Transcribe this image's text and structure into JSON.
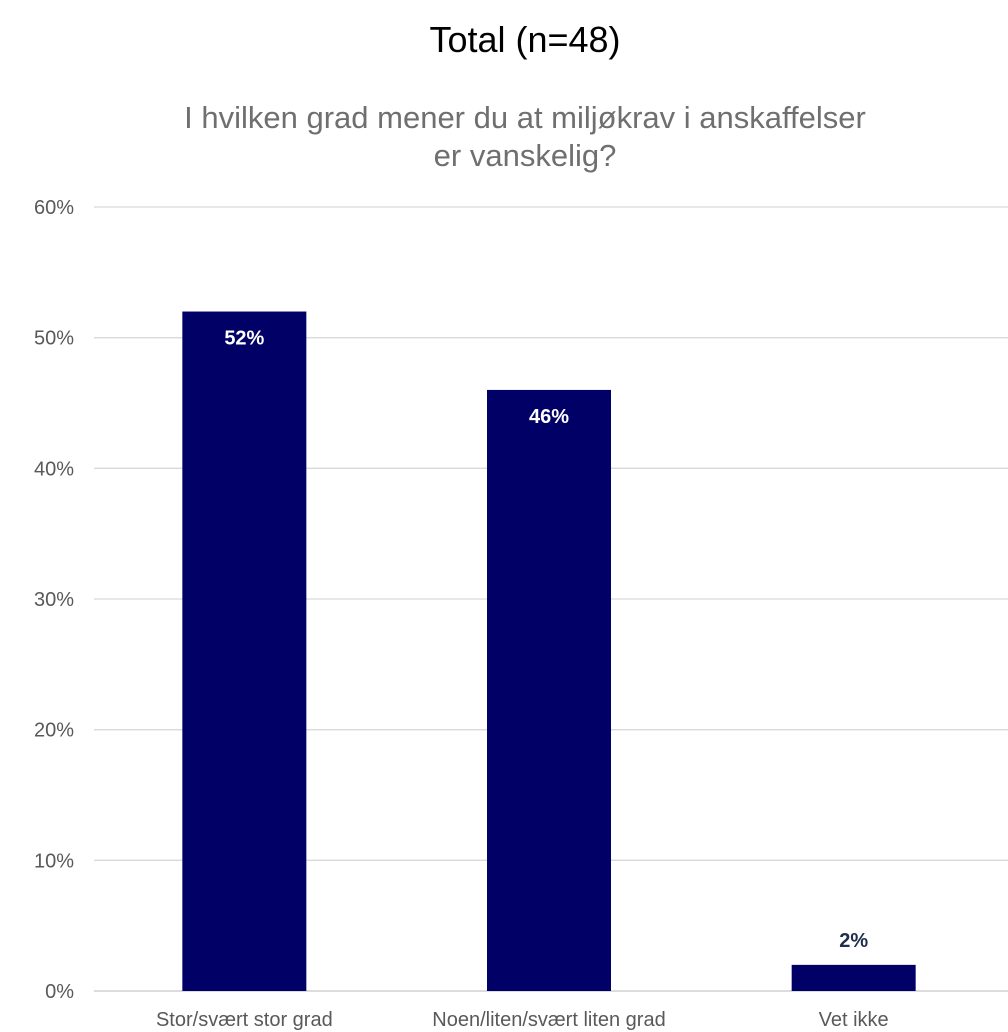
{
  "chart_data": {
    "type": "bar",
    "title": "Total (n=48)",
    "subtitle_lines": [
      "I hvilken grad mener du at miljøkrav i anskaffelser",
      "er vanskelig?"
    ],
    "categories": [
      "Stor/svært stor grad",
      "Noen/liten/svært liten grad",
      "Vet ikke"
    ],
    "values": [
      52,
      46,
      2
    ],
    "data_labels": [
      "52%",
      "46%",
      "2%"
    ],
    "y_ticks": [
      "0%",
      "10%",
      "20%",
      "30%",
      "40%",
      "50%",
      "60%"
    ],
    "ylim": [
      0,
      60
    ],
    "grid": true,
    "bar_color": "#000066",
    "label_color_inside": "#ffffff",
    "label_color_outside": "#1f2d4e"
  }
}
